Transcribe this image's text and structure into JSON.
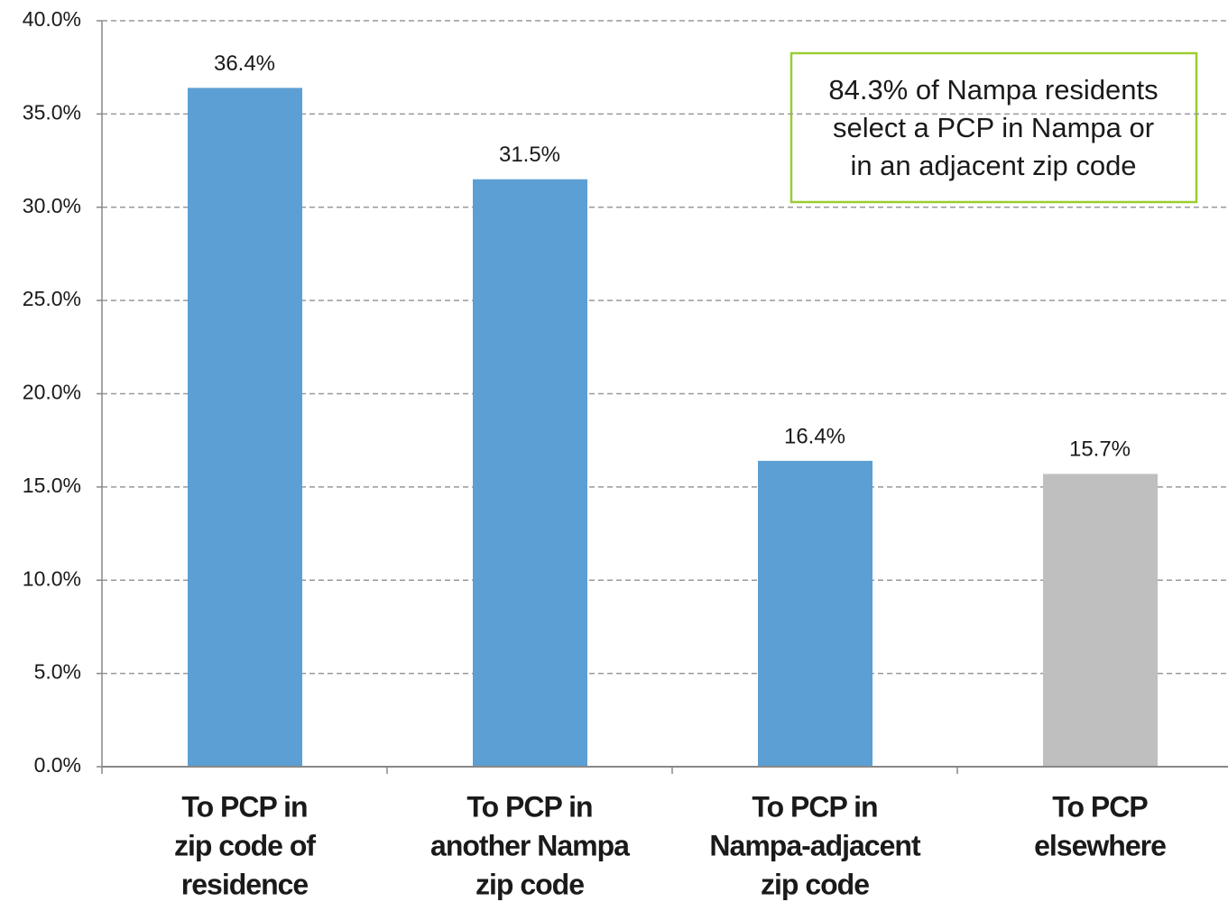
{
  "chart_data": {
    "type": "bar",
    "categories": [
      [
        "To PCP in",
        "zip code of",
        "residence"
      ],
      [
        "To PCP in",
        "another Nampa",
        "zip code"
      ],
      [
        "To PCP in",
        "Nampa-adjacent",
        "zip code"
      ],
      [
        "To PCP",
        "elsewhere"
      ]
    ],
    "values": [
      36.4,
      31.5,
      16.4,
      15.7
    ],
    "value_labels": [
      "36.4%",
      "31.5%",
      "16.4%",
      "15.7%"
    ],
    "colors": [
      "#5b9fd4",
      "#5b9fd4",
      "#5b9fd4",
      "#bfbfbf"
    ],
    "ylim": [
      0,
      40
    ],
    "yticks": [
      {
        "value": 0,
        "label": "0.0%"
      },
      {
        "value": 5,
        "label": "5.0%"
      },
      {
        "value": 10,
        "label": "10.0%"
      },
      {
        "value": 15,
        "label": "15.0%"
      },
      {
        "value": 20,
        "label": "20.0%"
      },
      {
        "value": 25,
        "label": "25.0%"
      },
      {
        "value": 30,
        "label": "30.0%"
      },
      {
        "value": 35,
        "label": "35.0%"
      },
      {
        "value": 40,
        "label": "40.0%"
      }
    ],
    "grid": true,
    "annotation": [
      "84.3% of Nampa residents",
      "select a PCP in Nampa or",
      "in an adjacent zip code"
    ]
  }
}
